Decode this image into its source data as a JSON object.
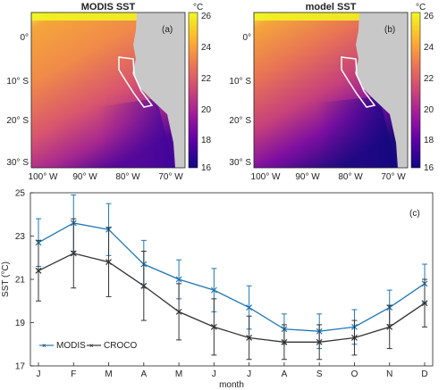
{
  "maps": [
    {
      "title": "MODIS SST",
      "panel_label": "(a)",
      "lat_ticks": [
        "0°",
        "10° S",
        "20° S",
        "30° S"
      ],
      "lon_ticks": [
        "100° W",
        "90° W",
        "80° W",
        "70° W"
      ]
    },
    {
      "title": "model SST",
      "panel_label": "(b)",
      "lat_ticks": [
        "0°",
        "10° S",
        "20° S",
        "30° S"
      ],
      "lon_ticks": [
        "100° W",
        "90° W",
        "80° W",
        "70° W"
      ]
    }
  ],
  "colorbar": {
    "unit": "°C",
    "ticks": [
      "26",
      "24",
      "22",
      "20",
      "18",
      "16"
    ],
    "range": [
      16,
      26
    ],
    "colors": [
      "#0d0887",
      "#5c01a6",
      "#9c179e",
      "#cc4778",
      "#ed7953",
      "#fdb42f",
      "#f0f921"
    ]
  },
  "land_color": "#c8c8c8",
  "chart_data": {
    "type": "line",
    "panel_label": "(c)",
    "xlabel": "month",
    "ylabel": "SST (°C)",
    "categories": [
      "J",
      "F",
      "M",
      "A",
      "M",
      "J",
      "J",
      "A",
      "S",
      "O",
      "N",
      "D"
    ],
    "ylim": [
      17,
      25
    ],
    "yticks": [
      "25",
      "23",
      "21",
      "19",
      "17"
    ],
    "legend_position": "bottom-left",
    "series": [
      {
        "name": "MODIS",
        "color": "#1f77b4",
        "values": [
          22.7,
          23.6,
          23.3,
          21.7,
          21.0,
          20.5,
          19.7,
          18.7,
          18.6,
          18.8,
          19.7,
          20.8
        ],
        "errors": [
          1.1,
          1.3,
          1.2,
          1.1,
          0.9,
          1.0,
          1.0,
          0.7,
          0.8,
          0.8,
          0.8,
          0.9
        ]
      },
      {
        "name": "CROCO",
        "color": "#333333",
        "values": [
          21.4,
          22.2,
          21.8,
          20.7,
          19.5,
          18.8,
          18.3,
          18.1,
          18.1,
          18.3,
          18.8,
          19.9
        ],
        "errors": [
          1.4,
          1.6,
          1.6,
          1.6,
          1.3,
          1.3,
          1.0,
          0.8,
          0.8,
          0.8,
          1.0,
          1.1
        ]
      }
    ]
  }
}
